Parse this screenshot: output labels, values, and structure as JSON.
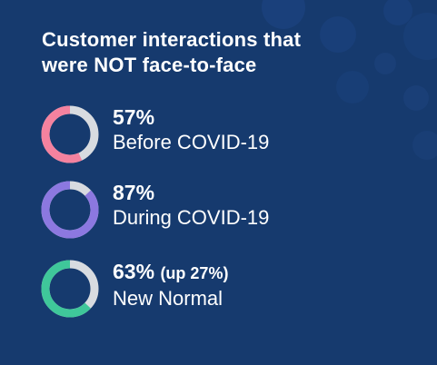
{
  "chart_data": {
    "type": "pie",
    "title_lines": [
      "Customer interactions that",
      "were NOT face-to-face"
    ],
    "items": [
      {
        "label": "Before COVID-19",
        "value": 57,
        "display": "57%",
        "note": "",
        "color": "#f4829f"
      },
      {
        "label": "During COVID-19",
        "value": 87,
        "display": "87%",
        "note": "",
        "color": "#8c78e0"
      },
      {
        "label": "New Normal",
        "value": 63,
        "display": "63%",
        "note": "(up 27%)",
        "color": "#3fc79a"
      }
    ],
    "track_color": "#d8dbe0",
    "background_color": "#163a6e"
  }
}
